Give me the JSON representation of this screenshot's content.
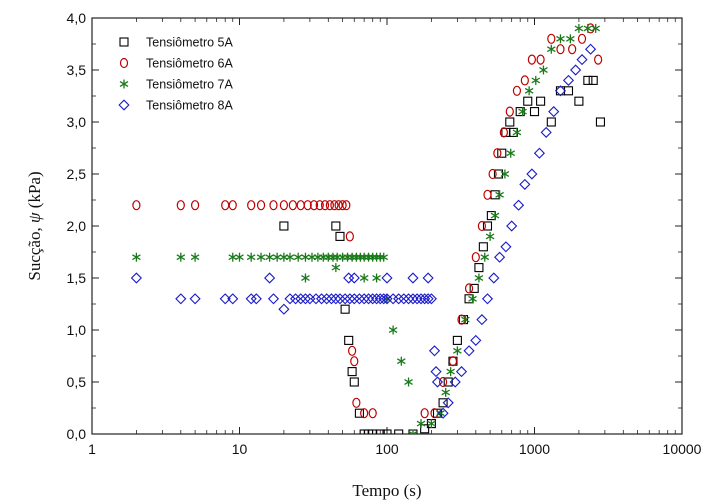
{
  "chart_data": {
    "type": "scatter",
    "xlabel": "Tempo (s)",
    "ylabel_prefix": "Sucção, ",
    "ylabel_symbol": "ψ",
    "ylabel_unit": " (kPa)",
    "x_scale": "log",
    "xlim": [
      1,
      10000
    ],
    "ylim": [
      0,
      4.0
    ],
    "x_ticks": [
      1,
      10,
      100,
      1000,
      10000
    ],
    "x_tick_labels": [
      "1",
      "10",
      "100",
      "1000",
      "10000"
    ],
    "y_ticks": [
      0,
      0.5,
      1.0,
      1.5,
      2.0,
      2.5,
      3.0,
      3.5,
      4.0
    ],
    "y_tick_labels": [
      "0,0",
      "0,5",
      "1,0",
      "1,5",
      "2,0",
      "2,5",
      "3,0",
      "3,5",
      "4,0"
    ],
    "grid": false,
    "legend_position": "top-left",
    "series": [
      {
        "name": "Tensiômetro 5A",
        "marker": "square",
        "color": "#000000",
        "points": [
          [
            20,
            2.0
          ],
          [
            45,
            2.0
          ],
          [
            48,
            1.9
          ],
          [
            52,
            1.2
          ],
          [
            55,
            0.9
          ],
          [
            58,
            0.6
          ],
          [
            60,
            0.5
          ],
          [
            65,
            0.2
          ],
          [
            70,
            0.0
          ],
          [
            75,
            0.0
          ],
          [
            80,
            0.0
          ],
          [
            90,
            0.0
          ],
          [
            100,
            0.0
          ],
          [
            120,
            0.0
          ],
          [
            150,
            0.0
          ],
          [
            180,
            0.05
          ],
          [
            200,
            0.1
          ],
          [
            220,
            0.2
          ],
          [
            240,
            0.3
          ],
          [
            260,
            0.5
          ],
          [
            280,
            0.7
          ],
          [
            300,
            0.9
          ],
          [
            330,
            1.1
          ],
          [
            360,
            1.3
          ],
          [
            390,
            1.4
          ],
          [
            420,
            1.6
          ],
          [
            450,
            1.8
          ],
          [
            480,
            2.0
          ],
          [
            510,
            2.1
          ],
          [
            540,
            2.3
          ],
          [
            570,
            2.5
          ],
          [
            600,
            2.7
          ],
          [
            640,
            2.9
          ],
          [
            680,
            3.0
          ],
          [
            720,
            2.9
          ],
          [
            800,
            3.1
          ],
          [
            900,
            3.2
          ],
          [
            1000,
            3.1
          ],
          [
            1100,
            3.2
          ],
          [
            1300,
            3.0
          ],
          [
            1500,
            3.3
          ],
          [
            1700,
            3.3
          ],
          [
            2000,
            3.2
          ],
          [
            2300,
            3.4
          ],
          [
            2500,
            3.4
          ],
          [
            2800,
            3.0
          ]
        ]
      },
      {
        "name": "Tensiômetro 6A",
        "marker": "circle",
        "color": "#c00000",
        "points": [
          [
            2,
            2.2
          ],
          [
            4,
            2.2
          ],
          [
            5,
            2.2
          ],
          [
            8,
            2.2
          ],
          [
            9,
            2.2
          ],
          [
            12,
            2.2
          ],
          [
            14,
            2.2
          ],
          [
            17,
            2.2
          ],
          [
            20,
            2.2
          ],
          [
            23,
            2.2
          ],
          [
            26,
            2.2
          ],
          [
            29,
            2.2
          ],
          [
            32,
            2.2
          ],
          [
            35,
            2.2
          ],
          [
            38,
            2.2
          ],
          [
            41,
            2.2
          ],
          [
            44,
            2.2
          ],
          [
            47,
            2.2
          ],
          [
            50,
            2.2
          ],
          [
            53,
            2.2
          ],
          [
            56,
            1.9
          ],
          [
            58,
            0.8
          ],
          [
            60,
            0.7
          ],
          [
            62,
            0.3
          ],
          [
            70,
            0.2
          ],
          [
            80,
            0.2
          ],
          [
            180,
            0.2
          ],
          [
            210,
            0.2
          ],
          [
            240,
            0.5
          ],
          [
            280,
            0.7
          ],
          [
            320,
            1.1
          ],
          [
            360,
            1.4
          ],
          [
            400,
            1.7
          ],
          [
            440,
            2.0
          ],
          [
            480,
            2.3
          ],
          [
            520,
            2.5
          ],
          [
            560,
            2.7
          ],
          [
            620,
            2.9
          ],
          [
            680,
            3.1
          ],
          [
            760,
            3.3
          ],
          [
            860,
            3.4
          ],
          [
            960,
            3.6
          ],
          [
            1100,
            3.6
          ],
          [
            1300,
            3.8
          ],
          [
            1500,
            3.7
          ],
          [
            1800,
            3.7
          ],
          [
            2100,
            3.8
          ],
          [
            2400,
            3.9
          ],
          [
            2700,
            3.6
          ]
        ]
      },
      {
        "name": "Tensiômetro 7A",
        "marker": "asterisk",
        "color": "#1a7a1a",
        "points": [
          [
            2,
            1.7
          ],
          [
            4,
            1.7
          ],
          [
            5,
            1.7
          ],
          [
            9,
            1.7
          ],
          [
            10,
            1.7
          ],
          [
            12,
            1.7
          ],
          [
            14,
            1.7
          ],
          [
            16,
            1.7
          ],
          [
            18,
            1.7
          ],
          [
            20,
            1.7
          ],
          [
            22,
            1.7
          ],
          [
            25,
            1.7
          ],
          [
            28,
            1.7
          ],
          [
            31,
            1.7
          ],
          [
            34,
            1.7
          ],
          [
            37,
            1.7
          ],
          [
            40,
            1.7
          ],
          [
            43,
            1.7
          ],
          [
            46,
            1.7
          ],
          [
            50,
            1.7
          ],
          [
            54,
            1.7
          ],
          [
            58,
            1.7
          ],
          [
            62,
            1.7
          ],
          [
            66,
            1.7
          ],
          [
            70,
            1.7
          ],
          [
            75,
            1.7
          ],
          [
            80,
            1.7
          ],
          [
            85,
            1.7
          ],
          [
            90,
            1.7
          ],
          [
            95,
            1.7
          ],
          [
            28,
            1.5
          ],
          [
            45,
            1.6
          ],
          [
            70,
            1.5
          ],
          [
            85,
            1.5
          ],
          [
            100,
            1.3
          ],
          [
            110,
            1.0
          ],
          [
            125,
            0.7
          ],
          [
            140,
            0.5
          ],
          [
            150,
            0.0
          ],
          [
            170,
            0.1
          ],
          [
            200,
            0.1
          ],
          [
            230,
            0.2
          ],
          [
            250,
            0.4
          ],
          [
            270,
            0.6
          ],
          [
            300,
            0.8
          ],
          [
            340,
            1.1
          ],
          [
            380,
            1.3
          ],
          [
            420,
            1.5
          ],
          [
            460,
            1.7
          ],
          [
            500,
            1.9
          ],
          [
            540,
            2.1
          ],
          [
            580,
            2.3
          ],
          [
            630,
            2.5
          ],
          [
            690,
            2.7
          ],
          [
            760,
            2.9
          ],
          [
            830,
            3.1
          ],
          [
            920,
            3.3
          ],
          [
            1020,
            3.4
          ],
          [
            1150,
            3.5
          ],
          [
            1300,
            3.7
          ],
          [
            1500,
            3.8
          ],
          [
            1750,
            3.8
          ],
          [
            2000,
            3.9
          ],
          [
            2300,
            3.9
          ],
          [
            2600,
            3.9
          ]
        ]
      },
      {
        "name": "Tensiômetro 8A",
        "marker": "diamond",
        "color": "#1a1acc",
        "points": [
          [
            2,
            1.5
          ],
          [
            4,
            1.3
          ],
          [
            5,
            1.3
          ],
          [
            8,
            1.3
          ],
          [
            9,
            1.3
          ],
          [
            12,
            1.3
          ],
          [
            13,
            1.3
          ],
          [
            16,
            1.5
          ],
          [
            17,
            1.3
          ],
          [
            20,
            1.2
          ],
          [
            22,
            1.3
          ],
          [
            24,
            1.3
          ],
          [
            26,
            1.3
          ],
          [
            28,
            1.3
          ],
          [
            30,
            1.3
          ],
          [
            33,
            1.3
          ],
          [
            36,
            1.3
          ],
          [
            39,
            1.3
          ],
          [
            42,
            1.3
          ],
          [
            45,
            1.3
          ],
          [
            48,
            1.3
          ],
          [
            52,
            1.3
          ],
          [
            56,
            1.3
          ],
          [
            60,
            1.3
          ],
          [
            65,
            1.3
          ],
          [
            70,
            1.3
          ],
          [
            75,
            1.3
          ],
          [
            80,
            1.3
          ],
          [
            85,
            1.3
          ],
          [
            90,
            1.3
          ],
          [
            95,
            1.3
          ],
          [
            100,
            1.3
          ],
          [
            110,
            1.3
          ],
          [
            120,
            1.3
          ],
          [
            130,
            1.3
          ],
          [
            140,
            1.3
          ],
          [
            150,
            1.3
          ],
          [
            160,
            1.3
          ],
          [
            170,
            1.3
          ],
          [
            180,
            1.3
          ],
          [
            190,
            1.3
          ],
          [
            200,
            1.3
          ],
          [
            55,
            1.5
          ],
          [
            60,
            1.5
          ],
          [
            100,
            1.5
          ],
          [
            150,
            1.5
          ],
          [
            190,
            1.5
          ],
          [
            210,
            0.8
          ],
          [
            215,
            0.6
          ],
          [
            220,
            0.5
          ],
          [
            240,
            0.2
          ],
          [
            260,
            0.3
          ],
          [
            290,
            0.5
          ],
          [
            320,
            0.6
          ],
          [
            360,
            0.8
          ],
          [
            400,
            0.9
          ],
          [
            440,
            1.1
          ],
          [
            480,
            1.3
          ],
          [
            530,
            1.5
          ],
          [
            580,
            1.7
          ],
          [
            640,
            1.8
          ],
          [
            700,
            2.0
          ],
          [
            780,
            2.2
          ],
          [
            860,
            2.4
          ],
          [
            960,
            2.5
          ],
          [
            1080,
            2.7
          ],
          [
            1200,
            2.9
          ],
          [
            1350,
            3.1
          ],
          [
            1500,
            3.3
          ],
          [
            1700,
            3.4
          ],
          [
            1900,
            3.5
          ],
          [
            2100,
            3.6
          ],
          [
            2400,
            3.7
          ]
        ]
      }
    ]
  }
}
